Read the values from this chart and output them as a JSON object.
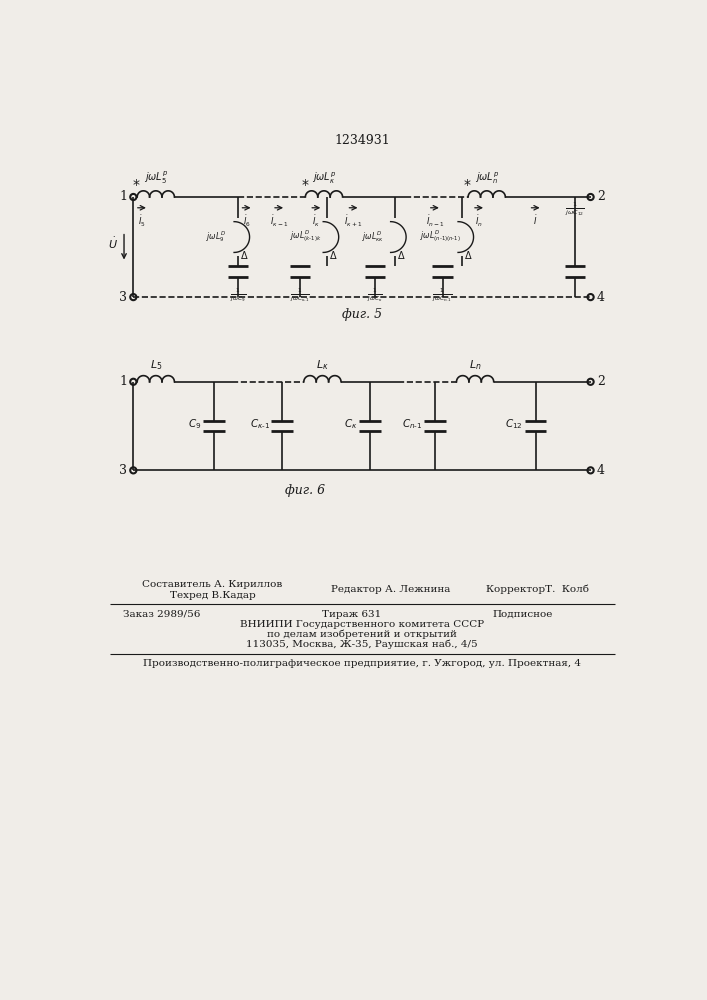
{
  "title": "1234931",
  "fig5_label": "фиг. 5",
  "fig6_label": "фиг. 6",
  "bg_color": "#f0ede8",
  "line_color": "#1a1a1a",
  "footer": {
    "line1_left": "Редактор А. Лежнина",
    "line1_center_top": "Составитель А. Кириллов",
    "line1_center_bot": "Техред В.Кадар",
    "line1_right": "КорректорТ.  Колб",
    "line2_left": "Заказ 2989/56",
    "line2_center": "Тираж 631",
    "line2_right": "Подписное",
    "line3": "ВНИИПИ Государственного комитета СССР",
    "line4": "по делам изобретений и открытий",
    "line5": "113035, Москва, Ж-35, Раушская наб., 4/5",
    "line6": "Производственно-полиграфическое предприятие, г. Ужгород, ул. Проектная, 4"
  }
}
